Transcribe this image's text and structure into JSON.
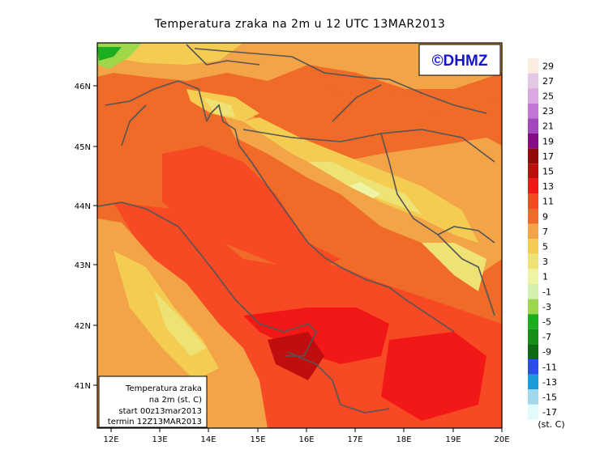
{
  "title": "Temperatura zraka na 2m u 12 UTC 13MAR2013",
  "logo": {
    "text": "©DHMZ",
    "color": "#1515c8"
  },
  "info_box": {
    "line1": "Temperatura zraka",
    "line2": "na 2m (st. C)",
    "line3": "start 00z13mar2013",
    "line4": "termin 12Z13MAR2013"
  },
  "axes": {
    "lat_ticks": [
      "46N",
      "45N",
      "44N",
      "43N",
      "42N",
      "41N"
    ],
    "lon_ticks": [
      "12E",
      "13E",
      "14E",
      "15E",
      "16E",
      "17E",
      "18E",
      "19E",
      "20E"
    ]
  },
  "colorbar": {
    "unit": "(st. C)",
    "boundaries": [
      "29",
      "27",
      "25",
      "23",
      "21",
      "19",
      "17",
      "15",
      "13",
      "11",
      "9",
      "7",
      "5",
      "3",
      "1",
      "-1",
      "-3",
      "-5",
      "-7",
      "-9",
      "-11",
      "-13",
      "-15",
      "-17"
    ],
    "colors": [
      "#fbeee0",
      "#e3c8e4",
      "#dba6e2",
      "#c276d6",
      "#a248bc",
      "#860c86",
      "#940a0a",
      "#c00e0e",
      "#f21818",
      "#f74a24",
      "#f06a28",
      "#f3a446",
      "#f4cc52",
      "#eee274",
      "#eef4a4",
      "#d4f0b0",
      "#9ed84a",
      "#1aae20",
      "#158f16",
      "#0c6a15",
      "#2d4cf0",
      "#189cdc",
      "#a2d8ee",
      "#e2fafa"
    ]
  }
}
